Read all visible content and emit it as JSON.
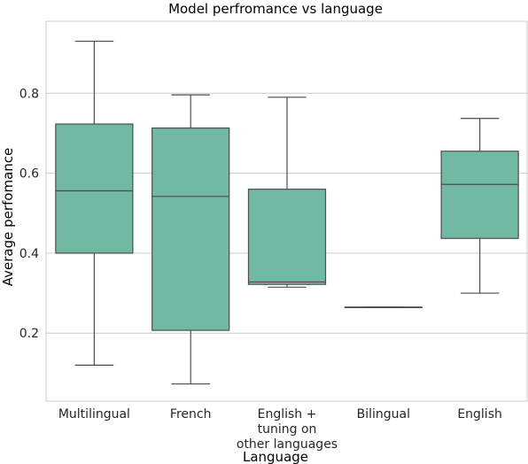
{
  "chart_data": {
    "type": "box",
    "title": "Model perfromance vs language",
    "xlabel": "Language",
    "ylabel": "Average perfomance",
    "ylim": [
      0.03,
      0.98
    ],
    "yticks": [
      0.2,
      0.4,
      0.6,
      0.8
    ],
    "ytick_labels": [
      "0.2",
      "0.4",
      "0.6",
      "0.8"
    ],
    "grid": "horizontal",
    "box_color": "#72b9a3",
    "line_color": "#4d4d4d",
    "categories": [
      {
        "label": [
          "Multilingual"
        ],
        "min": 0.12,
        "q1": 0.4,
        "median": 0.556,
        "q3": 0.723,
        "max": 0.93
      },
      {
        "label": [
          "French"
        ],
        "min": 0.073,
        "q1": 0.207,
        "median": 0.542,
        "q3": 0.713,
        "max": 0.796
      },
      {
        "label": [
          "English +",
          "tuning on",
          "other languages"
        ],
        "min": 0.315,
        "q1": 0.322,
        "median": 0.328,
        "q3": 0.56,
        "max": 0.79
      },
      {
        "label": [
          "Bilingual"
        ],
        "min": 0.265,
        "q1": 0.265,
        "median": 0.265,
        "q3": 0.265,
        "max": 0.265
      },
      {
        "label": [
          "English"
        ],
        "min": 0.3,
        "q1": 0.437,
        "median": 0.572,
        "q3": 0.655,
        "max": 0.737
      }
    ]
  }
}
